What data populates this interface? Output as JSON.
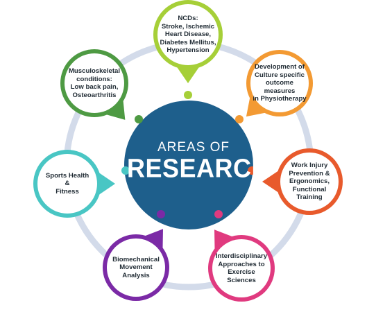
{
  "center": {
    "line1": "AREAS OF",
    "line2": "RESEARCH",
    "color": "#1e5f8c"
  },
  "ring_color": "#d3dbea",
  "nodes": [
    {
      "id": "ncds",
      "label": "NCDs:\nStroke, Ischemic\nHeart Disease,\nDiabetes Mellitus,\nHypertension",
      "color": "#a6cf38"
    },
    {
      "id": "culture",
      "label": "Development of\nCulture specific\noutcome measures\nin Physiotherapy",
      "color": "#f39a33"
    },
    {
      "id": "work-injury",
      "label": "Work Injury\nPrevention &\nErgonomics,\nFunctional\nTraining",
      "color": "#e85a2c"
    },
    {
      "id": "interdisciplinary",
      "label": "Interdisciplinary\nApproaches to\nExercise Sciences",
      "color": "#e03a7f"
    },
    {
      "id": "biomechanical",
      "label": "Biomechanical\nMovement Analysis",
      "color": "#7b2aa6"
    },
    {
      "id": "sports",
      "label": "Sports Health\n&\nFitness",
      "color": "#49c6c4"
    },
    {
      "id": "musculoskeletal",
      "label": "Musculoskeletal\nconditions:\nLow back pain,\nOsteoarthritis",
      "color": "#4e9a43"
    }
  ]
}
